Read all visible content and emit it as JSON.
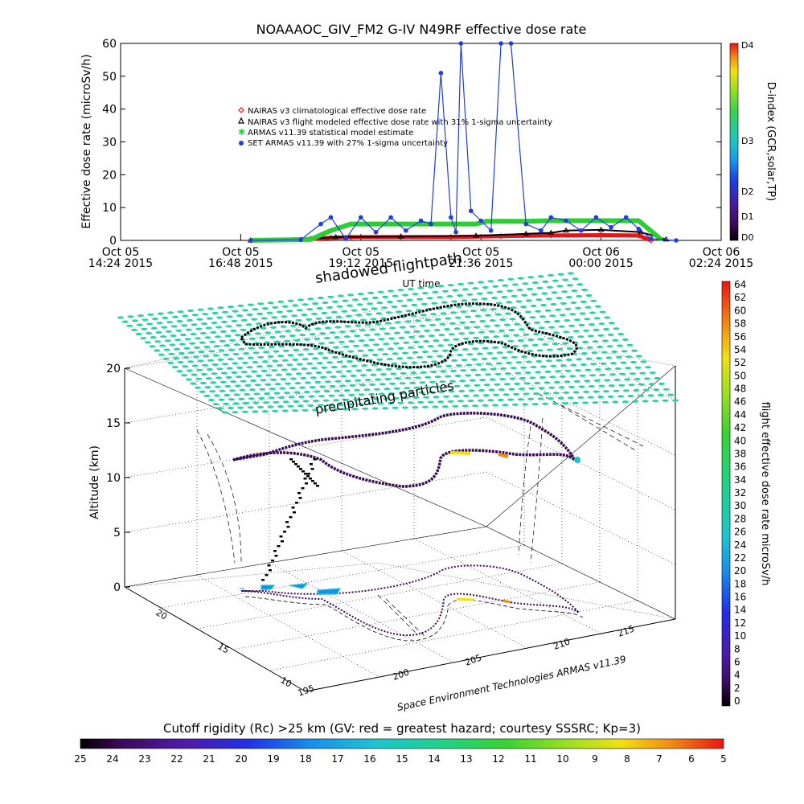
{
  "title": "NOAAAOC_GIV_FM2 G-IV    N49RF  effective dose rate",
  "top_chart": {
    "ylabel": "Effective dose rate (microSv/h)",
    "xlabel": "UT time",
    "right_axis_label": "D-index (GCR,solar,TP)",
    "right_ticks": [
      "D4",
      "D3",
      "D2",
      "D1",
      "D0"
    ],
    "x_ticks": [
      {
        "line1": "Oct 05",
        "line2": "14:24 2015"
      },
      {
        "line1": "Oct 05",
        "line2": "16:48 2015"
      },
      {
        "line1": "Oct 05",
        "line2": "19:12 2015"
      },
      {
        "line1": "Oct 05",
        "line2": "21:36 2015"
      },
      {
        "line1": "Oct 06",
        "line2": "00:00 2015"
      },
      {
        "line1": "Oct 06",
        "line2": "02:24 2015"
      }
    ],
    "legend": [
      {
        "label": "NAIRAS v3 climatological effective dose rate",
        "color": "#e8141b",
        "marker": "diamond"
      },
      {
        "label": "NAIRAS v3 flight modeled effective dose rate with 31% 1-sigma uncertainty",
        "color": "#000000",
        "marker": "triangle"
      },
      {
        "label": "ARMAS v11.39 statistical model estimate",
        "color": "#2ecc35",
        "marker": "star"
      },
      {
        "label": "SET ARMAS v11.39 with 27% 1-sigma uncertainty",
        "color": "#1f3fd6",
        "marker": "circle"
      }
    ]
  },
  "chart_data": [
    {
      "type": "line",
      "title": "NOAAAOC_GIV_FM2 G-IV    N49RF  effective dose rate",
      "xlabel": "UT time",
      "ylabel": "Effective dose rate (microSv/h)",
      "x_unit": "hours UT since Oct 05 00:00 2015",
      "xlim": [
        14.4,
        26.4
      ],
      "ylim": [
        0,
        60
      ],
      "y_ticks": [
        0,
        10,
        20,
        30,
        40,
        50,
        60
      ],
      "series": [
        {
          "name": "NAIRAS v3 climatological effective dose rate",
          "color": "#e8141b",
          "x": [
            17.0,
            18.0,
            18.6,
            19.0,
            20.0,
            21.0,
            22.0,
            23.0,
            24.0,
            24.75,
            25.0
          ],
          "values": [
            0.0,
            0.3,
            0.8,
            1.0,
            1.0,
            1.0,
            1.3,
            1.5,
            1.6,
            1.5,
            0.0
          ]
        },
        {
          "name": "NAIRAS v3 flight modeled effective dose rate with 31% 1-sigma uncertainty",
          "color": "#000000",
          "x": [
            17.0,
            18.2,
            18.7,
            20.0,
            21.5,
            22.5,
            23.0,
            23.3,
            24.0,
            24.8,
            25.3
          ],
          "values": [
            0.0,
            0.5,
            1.0,
            1.2,
            1.4,
            2.0,
            2.3,
            3.0,
            3.2,
            2.5,
            0.3
          ]
        },
        {
          "name": "ARMAS v11.39 statistical model estimate",
          "color": "#2ecc35",
          "x": [
            17.0,
            18.2,
            18.6,
            19.0,
            20.5,
            21.5,
            21.7,
            22.5,
            23.0,
            24.0,
            24.75,
            25.2
          ],
          "values": [
            0.0,
            0.3,
            3.0,
            5.0,
            5.0,
            5.0,
            5.8,
            5.8,
            6.0,
            6.0,
            6.0,
            0.3
          ]
        },
        {
          "name": "SET ARMAS v11.39 with 27% 1-sigma uncertainty",
          "color": "#1f3fd6",
          "x": [
            17.0,
            18.0,
            18.4,
            18.6,
            18.9,
            19.2,
            19.5,
            19.8,
            20.1,
            20.4,
            20.6,
            20.8,
            21.0,
            21.1,
            21.2,
            21.4,
            21.6,
            21.8,
            22.0,
            22.2,
            22.5,
            22.8,
            23.0,
            23.3,
            23.6,
            23.9,
            24.2,
            24.5,
            24.75,
            25.0,
            25.5
          ],
          "values": [
            0.0,
            0.2,
            5.0,
            7.0,
            0.5,
            7.0,
            2.5,
            7.0,
            3.0,
            6.0,
            5.0,
            51.0,
            7.0,
            2.5,
            60.0,
            9.0,
            6.0,
            3.0,
            60.0,
            60.0,
            5.0,
            3.0,
            7.0,
            6.0,
            3.0,
            7.0,
            4.0,
            7.0,
            3.5,
            0.5,
            0.0
          ]
        }
      ]
    },
    {
      "type": "scatter",
      "title": "",
      "zlabel": "Altitude (km)",
      "xlabel": "",
      "ylabel": "",
      "z_ticks": [
        0,
        5,
        10,
        15,
        20
      ],
      "x_ticks": [
        195,
        200,
        205,
        210,
        215
      ],
      "y_ticks": [
        10,
        15,
        20
      ],
      "annotations": [
        "shadowed flightpath",
        "precipitating particles"
      ]
    }
  ],
  "plot3d": {
    "zlabel": "Altitude (km)",
    "caption": "Space Environment Technologies ARMAS v11.39",
    "annot_shadow": "shadowed flightpath",
    "annot_precip": "precipitating particles",
    "z_ticks": [
      "0",
      "5",
      "10",
      "15",
      "20"
    ],
    "y_ticks": [
      "10",
      "15",
      "20"
    ],
    "x_ticks": [
      "195",
      "200",
      "205",
      "210",
      "215"
    ]
  },
  "right_colorbar": {
    "label": "flight effective dose rate microSv/h",
    "ticks": [
      "64",
      "62",
      "60",
      "58",
      "56",
      "54",
      "52",
      "50",
      "48",
      "46",
      "44",
      "42",
      "40",
      "38",
      "36",
      "34",
      "32",
      "30",
      "28",
      "26",
      "24",
      "22",
      "20",
      "18",
      "16",
      "14",
      "12",
      "10",
      "8",
      "6",
      "4",
      "2",
      "0"
    ]
  },
  "bottom_colorbar": {
    "label": "Cutoff rigidity (Rc) >25 km (GV: red = greatest hazard; courtesy SSSRC; Kp=3)",
    "ticks": [
      "25",
      "24",
      "23",
      "22",
      "21",
      "20",
      "19",
      "18",
      "17",
      "16",
      "15",
      "14",
      "13",
      "12",
      "11",
      "10",
      "9",
      "8",
      "7",
      "6",
      "5"
    ]
  }
}
